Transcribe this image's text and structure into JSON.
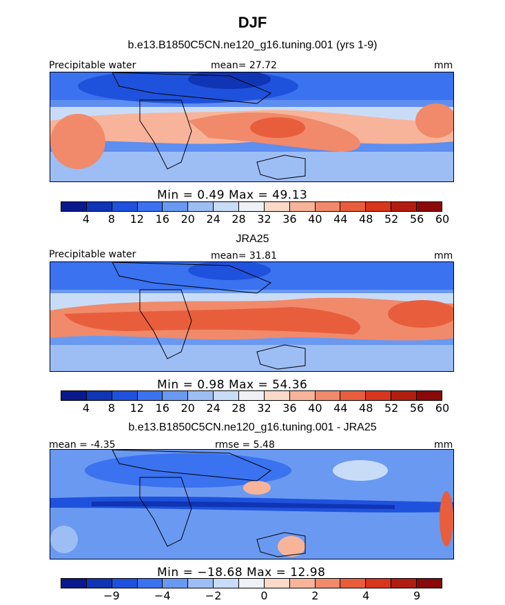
{
  "title": "DJF",
  "panel1": {
    "subtitle": "b.e13.B1850C5CN.ne120_g16.tuning.001 (yrs 1-9)",
    "left_label": "Precipitable water",
    "center_label": "mean=  27.72",
    "right_label": "mm",
    "stats": "Min =    0.49  Max =   49.13"
  },
  "panel2": {
    "subtitle": "JRA25",
    "left_label": "Precipitable water",
    "center_label": "mean=  31.81",
    "right_label": "mm",
    "stats": "Min =    0.98  Max =   54.36"
  },
  "panel3": {
    "subtitle": "b.e13.B1850C5CN.ne120_g16.tuning.001 - JRA25",
    "left_label": "mean =  -4.35",
    "center_label": "rmse =   5.48",
    "right_label": "mm",
    "stats": "Min = −18.68  Max =   12.98"
  },
  "colorbar_abs": {
    "colors": [
      "#0a1a8c",
      "#0f34b4",
      "#1f52dc",
      "#3a72f0",
      "#6a99f2",
      "#9dbdf5",
      "#c9dcf7",
      "#eef2f6",
      "#fbd9c8",
      "#f7b49a",
      "#f08a6a",
      "#e85e3c",
      "#d7361c",
      "#b21d10",
      "#8a0a0a"
    ],
    "ticks": [
      "4",
      "8",
      "12",
      "16",
      "20",
      "24",
      "28",
      "32",
      "36",
      "40",
      "44",
      "48",
      "52",
      "56",
      "60"
    ]
  },
  "colorbar_diff": {
    "colors": [
      "#0a1a8c",
      "#0f34b4",
      "#1f52dc",
      "#3a72f0",
      "#6a99f2",
      "#9dbdf5",
      "#c9dcf7",
      "#eef2f6",
      "#fbd9c8",
      "#f7b49a",
      "#f08a6a",
      "#e85e3c",
      "#d7361c",
      "#b21d10",
      "#8a0a0a"
    ],
    "ticks": [
      "−9",
      "−4",
      "−2",
      "0",
      "2",
      "4",
      "9"
    ]
  }
}
